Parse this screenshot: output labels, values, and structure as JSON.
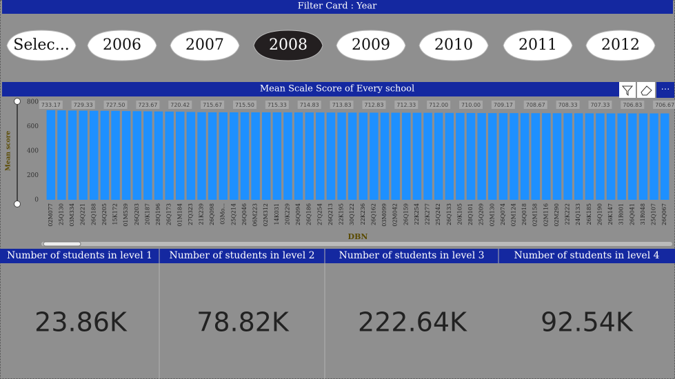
{
  "filter_card": {
    "title": "Filter Card : Year",
    "items": [
      "Selec...",
      "2006",
      "2007",
      "2008",
      "2009",
      "2010",
      "2011",
      "2012"
    ],
    "selected_index": 3
  },
  "chart_data": {
    "type": "bar",
    "title": "Mean Scale Score of Every school",
    "x_label": "DBN",
    "y_label": "Mean score",
    "color": "#1e90ff",
    "categories": [
      "02M077",
      "25Q130",
      "03M334",
      "26Q221",
      "26Q188",
      "26Q205",
      "15K172",
      "01M539",
      "26Q203",
      "20K187",
      "28Q196",
      "26Q173",
      "01M184",
      "27Q323",
      "21K239",
      "26Q098",
      "03Mo...",
      "25Q214",
      "26Q046",
      "06M223",
      "02M312",
      "14K031",
      "20K229",
      "26Q094",
      "26Q186",
      "27Q254",
      "26Q213",
      "22K195",
      "30Q122",
      "22K236",
      "26Q162",
      "03M099",
      "02M042",
      "26Q159",
      "22K254",
      "22K277",
      "25Q242",
      "26Q133",
      "20K105",
      "28Q101",
      "25Q209",
      "02M130",
      "26Q074",
      "02M124",
      "26Q018",
      "02M158",
      "02M116",
      "02M290",
      "22K222",
      "24Q133",
      "26K185",
      "26Q190",
      "26K147",
      "31R001",
      "26Q041",
      "31R048",
      "25Q107",
      "26Q067"
    ],
    "values": [
      733.17,
      731.5,
      730.0,
      729.33,
      728.5,
      728.0,
      727.5,
      726.0,
      725.0,
      723.67,
      722.5,
      721.5,
      720.42,
      718.5,
      716.5,
      715.67,
      715.6,
      715.5,
      715.5,
      715.4,
      715.4,
      715.33,
      715.0,
      715.0,
      714.83,
      714.5,
      714.0,
      713.83,
      713.5,
      713.0,
      712.83,
      712.5,
      712.5,
      712.33,
      712.2,
      712.0,
      712.0,
      711.0,
      710.5,
      710.0,
      709.5,
      709.3,
      709.17,
      709.0,
      708.8,
      708.67,
      708.5,
      708.4,
      708.33,
      708.0,
      707.5,
      707.33,
      707.0,
      707.0,
      706.83,
      706.8,
      706.7,
      706.67
    ],
    "value_labels": [
      "733.17",
      null,
      null,
      "729.33",
      null,
      null,
      "727.50",
      null,
      null,
      "723.67",
      null,
      null,
      "720.42",
      null,
      null,
      "715.67",
      null,
      null,
      "715.50",
      null,
      null,
      "715.33",
      null,
      null,
      "714.83",
      null,
      null,
      "713.83",
      null,
      null,
      "712.83",
      null,
      null,
      "712.33",
      null,
      null,
      "712.00",
      null,
      null,
      "710.00",
      null,
      null,
      "709.17",
      null,
      null,
      "708.67",
      null,
      null,
      "708.33",
      null,
      null,
      "707.33",
      null,
      null,
      "706.83",
      null,
      null,
      "706.67"
    ],
    "ylim": [
      0,
      800
    ],
    "yticks": [
      0,
      200,
      400,
      600,
      800
    ],
    "grid": false
  },
  "cards": [
    {
      "title": "Number of students in level 1",
      "value": "23.86K"
    },
    {
      "title": "Number of students in level 2",
      "value": "78.82K"
    },
    {
      "title": "Number of students in level 3",
      "value": "222.64K"
    },
    {
      "title": "Number of students in level 4",
      "value": "92.54K"
    }
  ]
}
